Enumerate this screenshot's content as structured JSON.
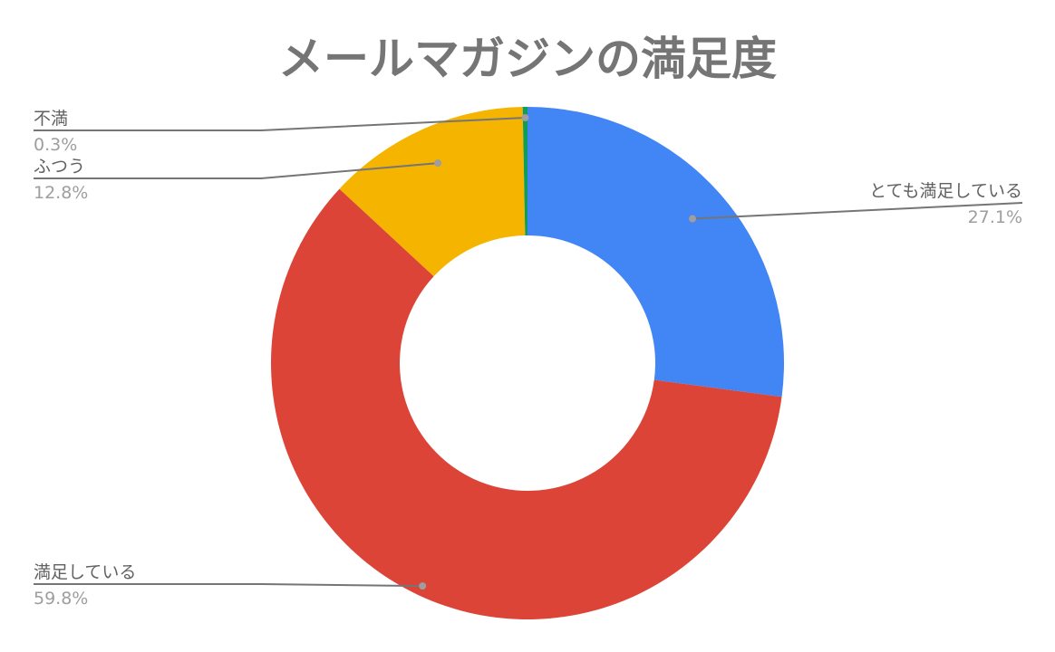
{
  "chart_data": {
    "type": "pie",
    "donut": true,
    "title": "メールマガジンの満足度",
    "slices": [
      {
        "label": "とても満足している",
        "value": 27.1,
        "pct_label": "27.1%",
        "color": "#4285f4"
      },
      {
        "label": "満足している",
        "value": 59.8,
        "pct_label": "59.8%",
        "color": "#db4437"
      },
      {
        "label": "ふつう",
        "value": 12.8,
        "pct_label": "12.8%",
        "color": "#f4b400"
      },
      {
        "label": "不満",
        "value": 0.3,
        "pct_label": "0.3%",
        "color": "#0f9d58"
      }
    ],
    "start": "top",
    "direction": "clockwise",
    "legend": "labels-with-leader-lines"
  }
}
